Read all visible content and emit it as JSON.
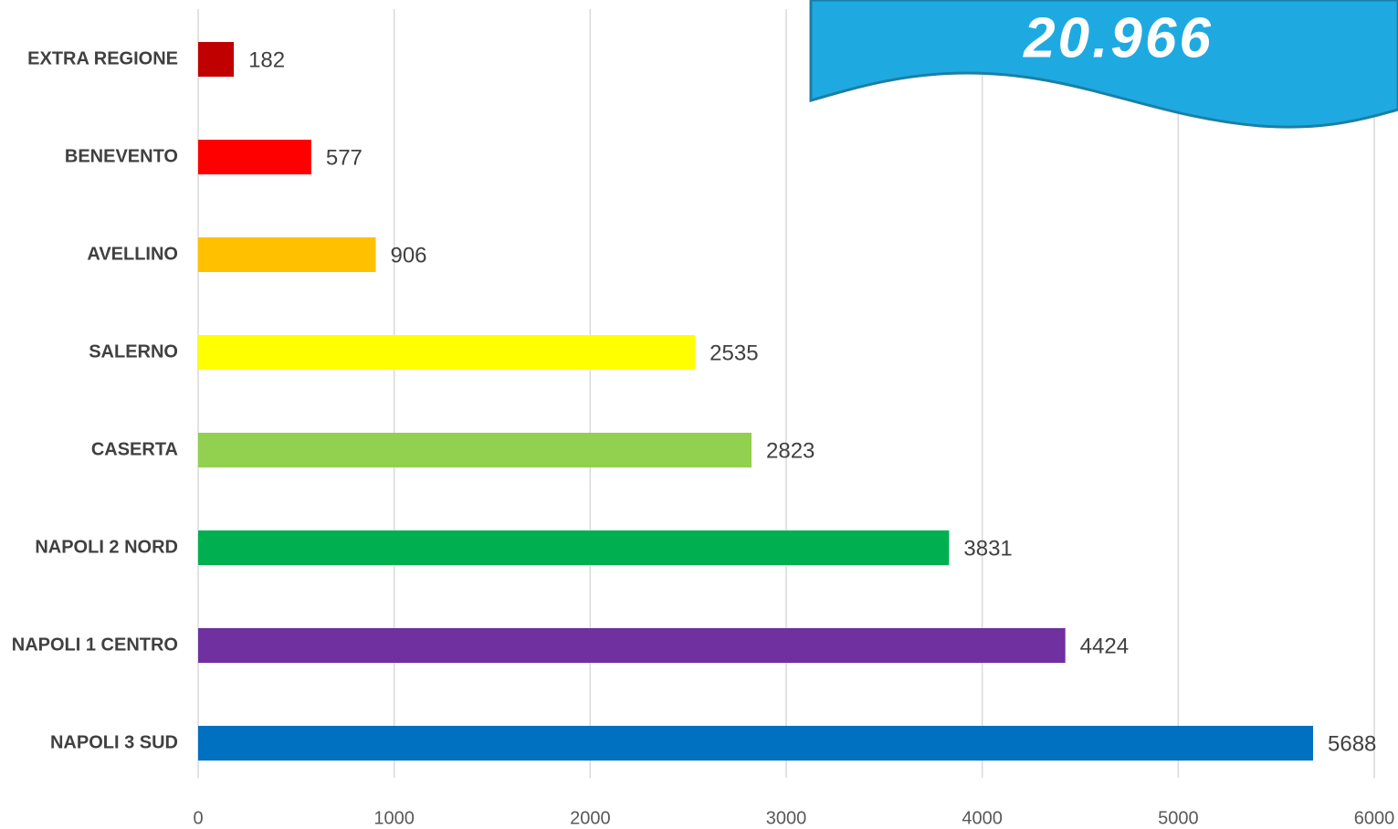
{
  "chart_data": {
    "type": "bar",
    "orientation": "horizontal",
    "categories": [
      "EXTRA REGIONE",
      "BENEVENTO",
      "AVELLINO",
      "SALERNO",
      "CASERTA",
      "NAPOLI 2 NORD",
      "NAPOLI 1 CENTRO",
      "NAPOLI 3 SUD"
    ],
    "values": [
      182,
      577,
      906,
      2535,
      2823,
      3831,
      4424,
      5688
    ],
    "colors": [
      "#c00000",
      "#ff0000",
      "#ffc000",
      "#ffff00",
      "#92d050",
      "#00b050",
      "#7030a0",
      "#0070c0"
    ],
    "xlim": [
      0,
      6000
    ],
    "xticks": [
      0,
      1000,
      2000,
      3000,
      4000,
      5000,
      6000
    ],
    "grid": true,
    "annotation": "20.966"
  }
}
